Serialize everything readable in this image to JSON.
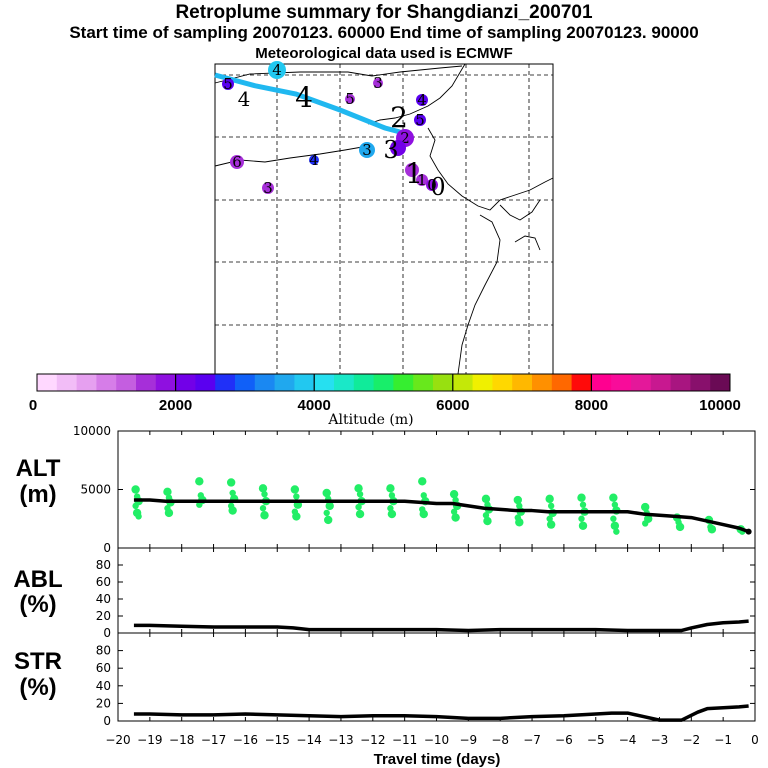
{
  "header": {
    "title": "Retroplume summary for Shangdianzi_200701",
    "sampling": "Start time of sampling 20070123. 60000     End time of sampling 20070123. 90000",
    "met": "Meteorological data used is ECMWF"
  },
  "map_labels": [
    {
      "text": "4",
      "size": "large"
    },
    {
      "text": "4",
      "size": "large"
    },
    {
      "text": "2",
      "size": "large"
    },
    {
      "text": "3",
      "size": "large"
    },
    {
      "text": "1",
      "size": "large"
    },
    {
      "text": "0",
      "size": "large"
    }
  ],
  "map_points": [
    {
      "label": "4",
      "alt": 3800
    },
    {
      "label": "5",
      "alt": 2300
    },
    {
      "label": "3",
      "alt": 1700
    },
    {
      "label": "5",
      "alt": 1500
    },
    {
      "label": "3",
      "alt": 1700
    },
    {
      "label": "4",
      "alt": 2800
    },
    {
      "label": "6",
      "alt": 1700
    },
    {
      "label": "4",
      "alt": 2300
    },
    {
      "label": "5",
      "alt": 2300
    },
    {
      "label": "3",
      "alt": 3700
    },
    {
      "label": "2",
      "alt": 1900
    },
    {
      "label": "",
      "alt": 2000
    },
    {
      "label": "",
      "alt": 1500
    },
    {
      "label": "1",
      "alt": 1600
    },
    {
      "label": "0",
      "alt": 1800
    }
  ],
  "colorbar": {
    "title": "Altitude (m)",
    "ticks": [
      "0",
      "2000",
      "4000",
      "6000",
      "8000",
      "10000"
    ],
    "colors": [
      "#ffd8ff",
      "#f2bdf7",
      "#e6a0f0",
      "#d67de8",
      "#c45ee0",
      "#a62fd9",
      "#8f10e0",
      "#7200e8",
      "#5a00f0",
      "#2030f8",
      "#1060f8",
      "#1a88f2",
      "#20a8ee",
      "#22c8f0",
      "#26e0f0",
      "#1ae8c8",
      "#10eb9a",
      "#18ee6a",
      "#36ee30",
      "#68e81c",
      "#98e010",
      "#c4e808",
      "#f0f000",
      "#ffd800",
      "#ffb800",
      "#ff9000",
      "#ff6800",
      "#ff0a0a",
      "#ff0090",
      "#f80c9a",
      "#e4189a",
      "#c81890",
      "#a81580",
      "#88106c",
      "#6a0a55"
    ]
  },
  "ylabels": {
    "alt": [
      "ALT",
      "(m)"
    ],
    "abl": [
      "ABL",
      "(%)"
    ],
    "str": [
      "STR",
      "(%)"
    ]
  },
  "colors": {
    "cyan": "#20b8f0",
    "green": "#22ee66",
    "line": "#000000"
  },
  "chart_data": [
    {
      "type": "line",
      "name": "ALT",
      "title": "",
      "xlabel": "Travel time (days)",
      "ylabel": "ALT (m)",
      "xlim": [
        -20,
        0
      ],
      "ylim": [
        0,
        10000
      ],
      "yticks": [
        "0",
        "5000",
        "10000"
      ],
      "x": [
        -19.5,
        -19,
        -18.5,
        -18,
        -17.5,
        -17,
        -16.5,
        -16,
        -15.5,
        -15,
        -14.5,
        -14,
        -13.5,
        -13,
        -12.5,
        -12,
        -11.5,
        -11,
        -10.5,
        -10,
        -9.5,
        -9,
        -8.5,
        -8,
        -7.5,
        -7,
        -6.5,
        -6,
        -5.5,
        -5,
        -4.5,
        -4,
        -3.5,
        -3,
        -2.5,
        -2,
        -1.5,
        -1,
        -0.5,
        -0.2
      ],
      "series": [
        {
          "name": "median altitude",
          "values": [
            4100,
            4100,
            4000,
            4000,
            4000,
            4000,
            4000,
            4000,
            4000,
            4000,
            4000,
            4000,
            4000,
            4000,
            4000,
            4000,
            4000,
            4000,
            3900,
            3800,
            3800,
            3600,
            3400,
            3300,
            3200,
            3200,
            3100,
            3100,
            3100,
            3100,
            3100,
            3100,
            2900,
            2800,
            2700,
            2600,
            2300,
            2000,
            1700,
            1400
          ]
        }
      ],
      "scatter_clusters": [
        {
          "x": -19.4,
          "values": [
            5000,
            4400,
            4000,
            3600,
            3000,
            2700
          ]
        },
        {
          "x": -18.4,
          "values": [
            4800,
            4300,
            3900,
            3400,
            3000
          ]
        },
        {
          "x": -17.4,
          "values": [
            5700,
            4500,
            4100,
            3700
          ]
        },
        {
          "x": -16.4,
          "values": [
            5600,
            4700,
            4200,
            3600,
            3200
          ]
        },
        {
          "x": -15.4,
          "values": [
            5100,
            4600,
            4000,
            3400,
            2800
          ]
        },
        {
          "x": -14.4,
          "values": [
            5000,
            4400,
            3700,
            3100,
            2700
          ]
        },
        {
          "x": -13.4,
          "values": [
            4700,
            4200,
            3600,
            3000,
            2400
          ]
        },
        {
          "x": -12.4,
          "values": [
            5100,
            4600,
            4000,
            3500,
            2900
          ]
        },
        {
          "x": -11.4,
          "values": [
            5100,
            4500,
            4000,
            3400,
            2900
          ]
        },
        {
          "x": -10.4,
          "values": [
            5700,
            4500,
            4000,
            3300,
            2900
          ]
        },
        {
          "x": -9.4,
          "values": [
            4600,
            4100,
            3600,
            3100,
            2600
          ]
        },
        {
          "x": -8.4,
          "values": [
            4200,
            3700,
            3300,
            2800,
            2300
          ]
        },
        {
          "x": -7.4,
          "values": [
            4100,
            3600,
            3100,
            2600,
            2200
          ]
        },
        {
          "x": -6.4,
          "values": [
            4200,
            3600,
            3000,
            2500,
            2000
          ]
        },
        {
          "x": -5.4,
          "values": [
            4300,
            3700,
            3100,
            2500,
            1900
          ]
        },
        {
          "x": -4.4,
          "values": [
            4300,
            3700,
            3200,
            2500,
            1900,
            1400
          ]
        },
        {
          "x": -3.4,
          "values": [
            3500,
            3000,
            2500,
            2100
          ]
        },
        {
          "x": -2.4,
          "values": [
            2600,
            2200,
            1800
          ]
        },
        {
          "x": -1.4,
          "values": [
            2400,
            1800,
            1600
          ]
        },
        {
          "x": -0.4,
          "values": [
            1600,
            1400
          ]
        }
      ]
    },
    {
      "type": "line",
      "name": "ABL",
      "ylabel": "ABL (%)",
      "xlim": [
        -20,
        0
      ],
      "ylim": [
        0,
        100
      ],
      "yticks": [
        "0",
        "20",
        "40",
        "60",
        "80"
      ],
      "x": [
        -19.5,
        -19,
        -18,
        -17,
        -16,
        -15,
        -14.5,
        -14,
        -13,
        -12,
        -11,
        -10,
        -9,
        -8,
        -7,
        -6,
        -5,
        -4,
        -3,
        -2.3,
        -2,
        -1.5,
        -1,
        -0.5,
        -0.2
      ],
      "series": [
        {
          "name": "ABL fraction",
          "values": [
            9,
            9,
            8,
            7,
            7,
            7,
            6,
            4,
            4,
            4,
            4,
            4,
            3,
            4,
            4,
            4,
            4,
            3,
            3,
            3,
            6,
            10,
            12,
            13,
            14
          ]
        }
      ]
    },
    {
      "type": "line",
      "name": "STR",
      "ylabel": "STR (%)",
      "xlim": [
        -20,
        0
      ],
      "ylim": [
        0,
        100
      ],
      "yticks": [
        "0",
        "20",
        "40",
        "60",
        "80"
      ],
      "x": [
        -19.5,
        -19,
        -18,
        -17,
        -16,
        -15,
        -14,
        -13,
        -12,
        -11,
        -10,
        -9,
        -8,
        -7,
        -6,
        -5,
        -4.5,
        -4,
        -3.5,
        -3,
        -2.3,
        -1.8,
        -1.5,
        -1,
        -0.5,
        -0.2
      ],
      "series": [
        {
          "name": "stratospheric fraction",
          "values": [
            8,
            8,
            7,
            7,
            8,
            7,
            6,
            5,
            6,
            6,
            5,
            3,
            3,
            5,
            6,
            8,
            9,
            9,
            5,
            1,
            1,
            10,
            14,
            15,
            16,
            17
          ]
        }
      ]
    }
  ],
  "xaxis": {
    "ticks": [
      "−20",
      "−19",
      "−18",
      "−17",
      "−16",
      "−15",
      "−14",
      "−13",
      "−12",
      "−11",
      "−10",
      "−9",
      "−8",
      "−7",
      "−6",
      "−5",
      "−4",
      "−3",
      "−2",
      "−1",
      "0"
    ],
    "label": "Travel time (days)"
  }
}
